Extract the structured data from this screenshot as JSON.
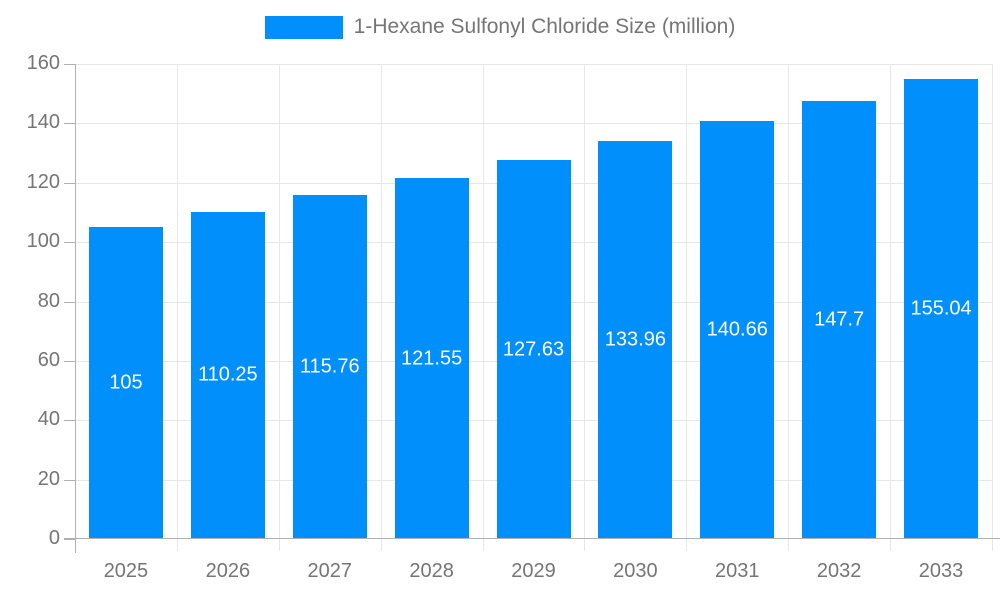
{
  "colors": {
    "bar": "#008FFB",
    "grid_line": "#e7e7e7",
    "axis_line": "#b0b0b0",
    "tick_label": "#757575",
    "bar_value_label": "#ffffff",
    "legend_text": "#757575"
  },
  "chart_data": {
    "type": "bar",
    "title": "",
    "legend": "1-Hexane Sulfonyl Chloride Size (million)",
    "legend_position": "top",
    "categories": [
      "2025",
      "2026",
      "2027",
      "2028",
      "2029",
      "2030",
      "2031",
      "2032",
      "2033"
    ],
    "series": [
      {
        "name": "1-Hexane Sulfonyl Chloride Size (million)",
        "values": [
          105,
          110.25,
          115.76,
          121.55,
          127.63,
          133.96,
          140.66,
          147.7,
          155.04
        ]
      }
    ],
    "value_labels": [
      "105",
      "110.25",
      "115.76",
      "121.55",
      "127.63",
      "133.96",
      "140.66",
      "147.7",
      "155.04"
    ],
    "xlabel": "",
    "ylabel": "",
    "ylim": [
      0,
      160
    ],
    "ytick_step": 20,
    "yticks": [
      0,
      20,
      40,
      60,
      80,
      100,
      120,
      140,
      160
    ],
    "grid": true
  }
}
